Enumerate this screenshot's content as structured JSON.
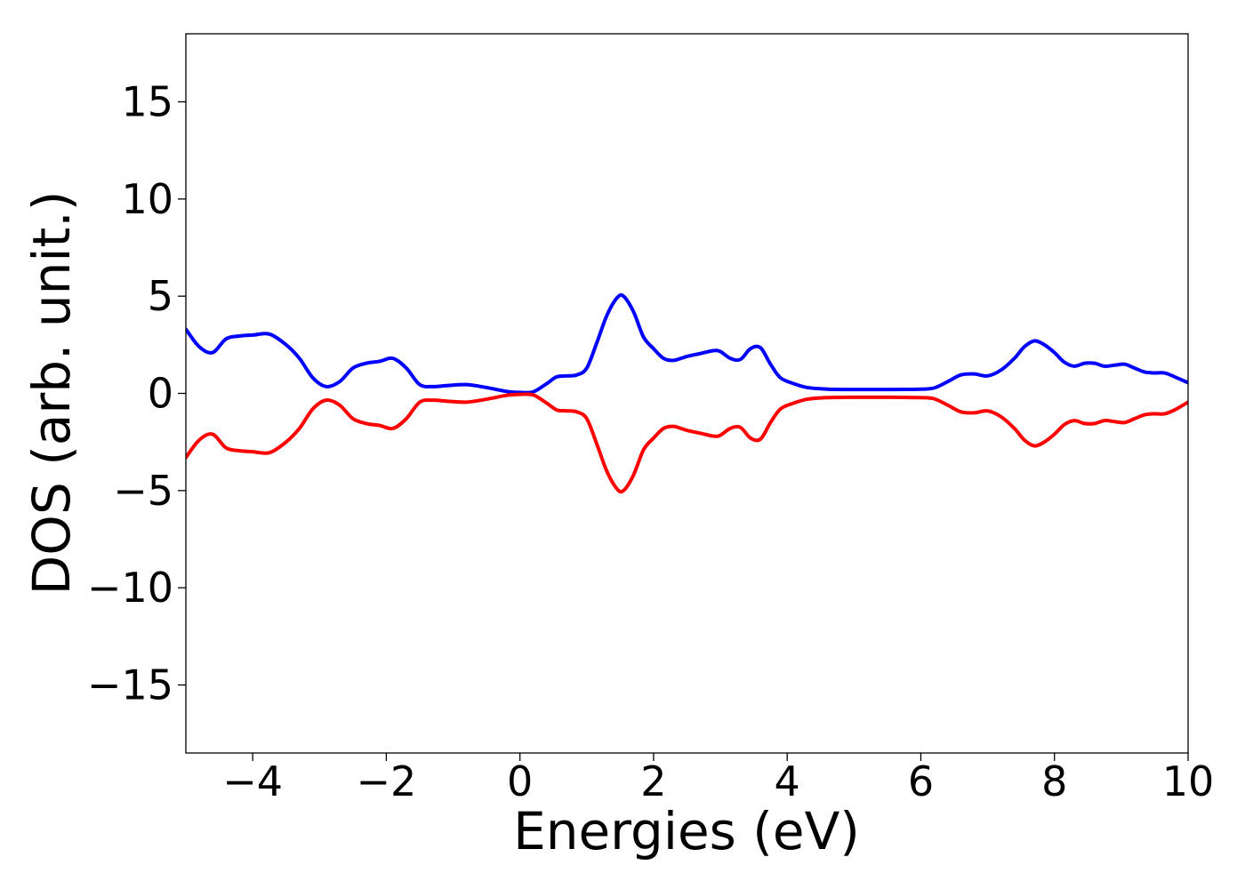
{
  "chart_data": {
    "type": "line",
    "title": "",
    "xlabel": "Energies (eV)",
    "ylabel": "DOS (arb. unit.)",
    "xlim": [
      -5,
      10
    ],
    "ylim": [
      -18.5,
      18.5
    ],
    "x_ticks": [
      -4,
      -2,
      0,
      2,
      4,
      6,
      8,
      10
    ],
    "x_tick_labels": [
      "−4",
      "−2",
      "0",
      "2",
      "4",
      "6",
      "8",
      "10"
    ],
    "y_ticks": [
      -15,
      -10,
      -5,
      0,
      5,
      10,
      15
    ],
    "y_tick_labels": [
      "−15",
      "−10",
      "−5",
      "0",
      "5",
      "10",
      "15"
    ],
    "grid": false,
    "legend": "none",
    "x": [
      -5.0,
      -4.8,
      -4.6,
      -4.4,
      -4.2,
      -4.0,
      -3.75,
      -3.5,
      -3.3,
      -3.1,
      -2.9,
      -2.7,
      -2.5,
      -2.3,
      -2.1,
      -1.9,
      -1.7,
      -1.5,
      -1.3,
      -1.1,
      -0.8,
      -0.5,
      -0.2,
      0.0,
      0.2,
      0.4,
      0.55,
      0.7,
      0.85,
      1.0,
      1.15,
      1.3,
      1.45,
      1.55,
      1.7,
      1.85,
      2.0,
      2.15,
      2.3,
      2.5,
      2.7,
      2.9,
      3.0,
      3.15,
      3.3,
      3.45,
      3.6,
      3.75,
      3.9,
      4.1,
      4.3,
      4.6,
      5.0,
      5.5,
      6.0,
      6.2,
      6.4,
      6.6,
      6.8,
      7.0,
      7.2,
      7.4,
      7.55,
      7.7,
      7.85,
      8.0,
      8.15,
      8.3,
      8.45,
      8.6,
      8.75,
      8.9,
      9.05,
      9.2,
      9.35,
      9.5,
      9.65,
      9.8,
      10.0
    ],
    "series": [
      {
        "color": "#0000ff",
        "values": [
          3.3,
          2.4,
          2.1,
          2.8,
          2.95,
          3.0,
          3.05,
          2.5,
          1.8,
          0.8,
          0.35,
          0.6,
          1.3,
          1.55,
          1.65,
          1.8,
          1.3,
          0.45,
          0.35,
          0.4,
          0.45,
          0.3,
          0.1,
          0.05,
          0.08,
          0.5,
          0.85,
          0.9,
          0.95,
          1.3,
          2.6,
          4.0,
          4.9,
          5.0,
          4.2,
          2.9,
          2.3,
          1.8,
          1.7,
          1.9,
          2.05,
          2.2,
          2.15,
          1.8,
          1.75,
          2.3,
          2.35,
          1.5,
          0.8,
          0.5,
          0.3,
          0.22,
          0.2,
          0.2,
          0.22,
          0.28,
          0.6,
          0.95,
          1.0,
          0.9,
          1.2,
          1.8,
          2.4,
          2.7,
          2.5,
          2.1,
          1.6,
          1.4,
          1.55,
          1.55,
          1.4,
          1.45,
          1.5,
          1.3,
          1.1,
          1.05,
          1.05,
          0.85,
          0.55
        ]
      },
      {
        "color": "#ff0000",
        "values": [
          -3.3,
          -2.4,
          -2.1,
          -2.8,
          -2.95,
          -3.0,
          -3.05,
          -2.5,
          -1.8,
          -0.8,
          -0.35,
          -0.6,
          -1.3,
          -1.55,
          -1.65,
          -1.8,
          -1.3,
          -0.45,
          -0.35,
          -0.4,
          -0.45,
          -0.3,
          -0.1,
          -0.05,
          -0.08,
          -0.5,
          -0.85,
          -0.9,
          -0.95,
          -1.3,
          -2.6,
          -4.0,
          -4.9,
          -5.0,
          -4.2,
          -2.9,
          -2.3,
          -1.8,
          -1.7,
          -1.9,
          -2.05,
          -2.2,
          -2.15,
          -1.8,
          -1.75,
          -2.3,
          -2.35,
          -1.5,
          -0.8,
          -0.5,
          -0.3,
          -0.22,
          -0.2,
          -0.2,
          -0.22,
          -0.28,
          -0.6,
          -0.95,
          -1.0,
          -0.9,
          -1.2,
          -1.8,
          -2.4,
          -2.7,
          -2.5,
          -2.1,
          -1.6,
          -1.4,
          -1.55,
          -1.55,
          -1.4,
          -1.45,
          -1.5,
          -1.3,
          -1.1,
          -1.05,
          -1.05,
          -0.85,
          -0.45
        ]
      }
    ]
  }
}
